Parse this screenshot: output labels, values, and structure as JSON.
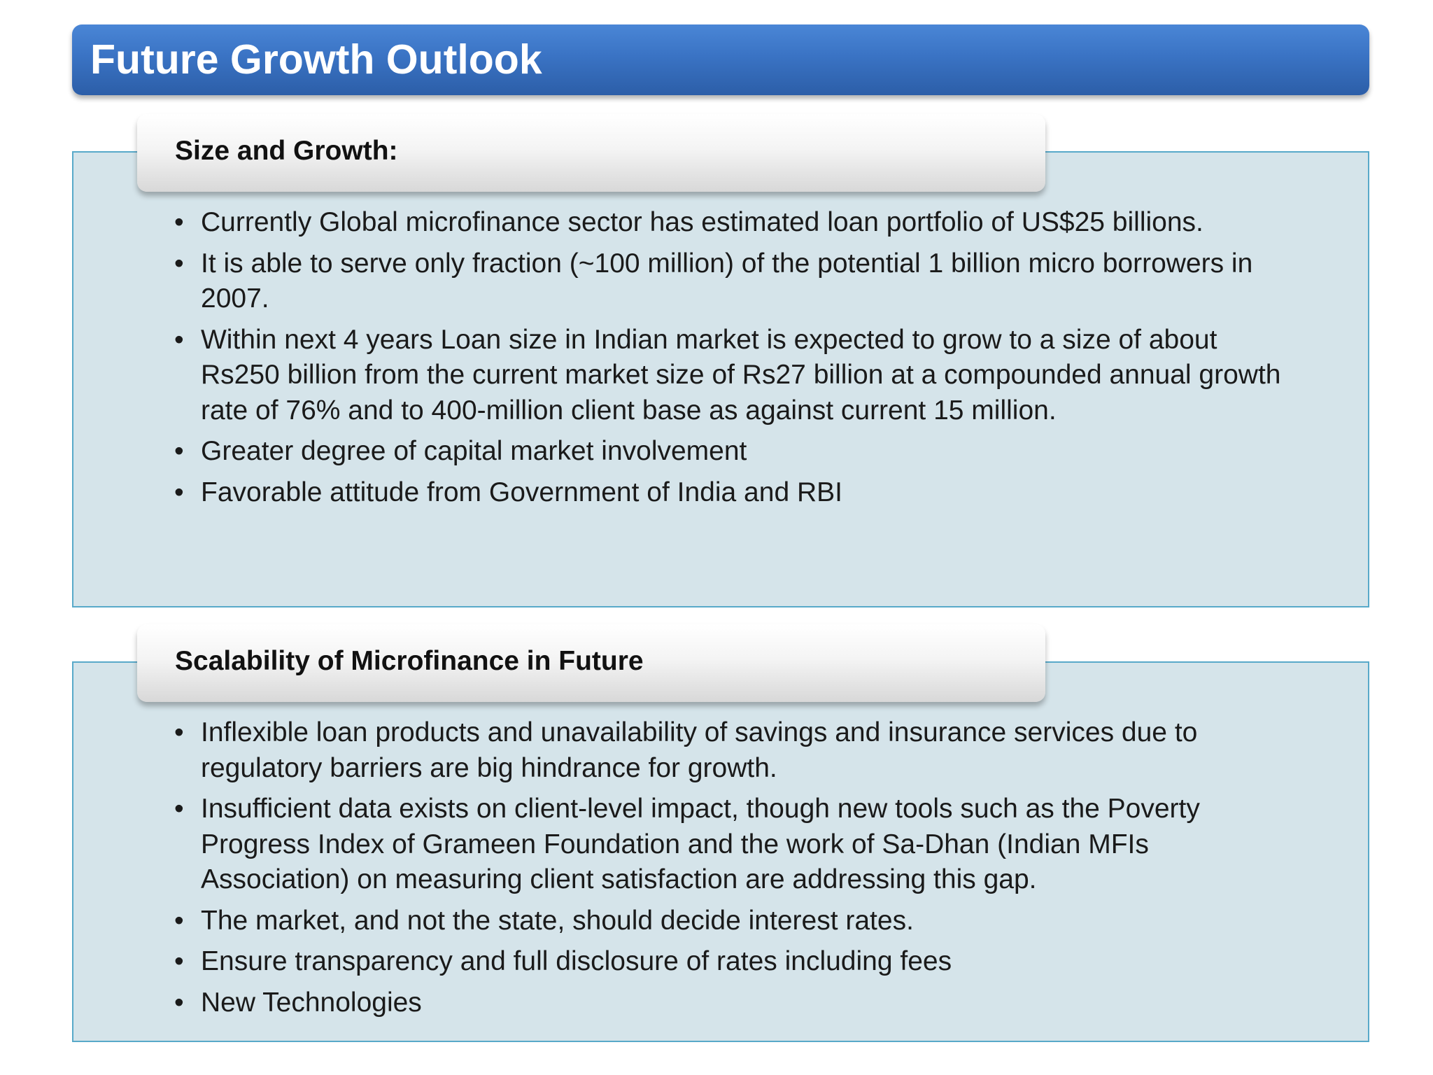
{
  "slide": {
    "title": "Future Growth Outlook"
  },
  "sections": [
    {
      "heading": "Size and Growth:",
      "bullets": [
        "Currently Global microfinance sector has estimated loan portfolio of US$25 billions.",
        "It is able to serve only fraction (~100 million) of the potential 1 billion micro borrowers in 2007.",
        "Within next 4 years Loan size in Indian market is expected to grow to a size of about Rs250 billion from the current market size of Rs27 billion at a compounded annual growth rate of 76% and to 400-million client base as against current 15 million.",
        "Greater degree of capital market involvement",
        "Favorable attitude from Government of India and RBI"
      ]
    },
    {
      "heading": "Scalability of Microfinance in Future",
      "bullets": [
        "Inflexible loan products and unavailability of savings and insurance services due to regulatory barriers are big hindrance for growth.",
        "Insufficient data exists on client-level impact, though new tools such as the Poverty Progress Index of Grameen Foundation and the work of Sa-Dhan (Indian MFIs Association) on measuring client satisfaction are addressing this gap.",
        "The market, and not the state, should decide interest rates.",
        "Ensure transparency and full disclosure of rates including fees",
        "New Technologies"
      ]
    }
  ],
  "colors": {
    "title_bar": "#3a73c4",
    "panel_fill": "#d5e4ea",
    "panel_border": "#58a9c9",
    "title_text": "#ffffff",
    "body_text": "#1a1a1a"
  },
  "icons": {
    "bullet": "bullet-dot"
  }
}
